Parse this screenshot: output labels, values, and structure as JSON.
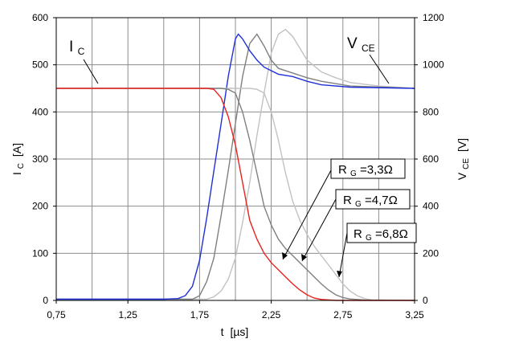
{
  "chart_data": {
    "type": "line",
    "xlabel_main": "t",
    "xlabel_unit": "[µs]",
    "ylabel_left_main": "I",
    "ylabel_left_sub": "C",
    "ylabel_left_unit": "[A]",
    "ylabel_right_main": "V",
    "ylabel_right_sub": "CE",
    "ylabel_right_unit": "[V]",
    "xlim": [
      0.75,
      3.25
    ],
    "ylim_left": [
      0,
      600
    ],
    "ylim_right": [
      0,
      1200
    ],
    "grid": true,
    "x_ticks": [
      "0,75",
      "1,25",
      "1,75",
      "2,25",
      "2,75",
      "3,25"
    ],
    "x_gridlines": [
      0.75,
      1.0,
      1.25,
      1.5,
      1.75,
      2.0,
      2.25,
      2.5,
      2.75,
      3.0,
      3.25
    ],
    "y_left_ticks": [
      "0",
      "100",
      "200",
      "300",
      "400",
      "500",
      "600"
    ],
    "y_right_ticks": [
      "0",
      "200",
      "400",
      "600",
      "800",
      "1000",
      "1200"
    ],
    "annotations": {
      "ic": {
        "main": "I",
        "sub": "C"
      },
      "vce": {
        "main": "V",
        "sub": "CE"
      }
    },
    "series": [
      {
        "name": "RG=3,3Ω",
        "label_main": "R",
        "label_sub": "G",
        "label_rest": "=3,3Ω",
        "color": "#e8231e",
        "vce_color": "#1f2fd8",
        "ic": [
          [
            0.75,
            450
          ],
          [
            1.0,
            450
          ],
          [
            1.25,
            450
          ],
          [
            1.5,
            450
          ],
          [
            1.75,
            450
          ],
          [
            1.8,
            450
          ],
          [
            1.85,
            448
          ],
          [
            1.9,
            430
          ],
          [
            1.95,
            390
          ],
          [
            2.0,
            330
          ],
          [
            2.05,
            250
          ],
          [
            2.1,
            170
          ],
          [
            2.15,
            130
          ],
          [
            2.2,
            100
          ],
          [
            2.25,
            80
          ],
          [
            2.3,
            65
          ],
          [
            2.35,
            50
          ],
          [
            2.4,
            35
          ],
          [
            2.45,
            22
          ],
          [
            2.5,
            12
          ],
          [
            2.55,
            5
          ],
          [
            2.6,
            2
          ],
          [
            2.7,
            0
          ],
          [
            3.25,
            0
          ]
        ],
        "vce": [
          [
            0.75,
            5
          ],
          [
            1.0,
            5
          ],
          [
            1.25,
            5
          ],
          [
            1.5,
            5
          ],
          [
            1.6,
            8
          ],
          [
            1.65,
            20
          ],
          [
            1.7,
            60
          ],
          [
            1.75,
            170
          ],
          [
            1.8,
            350
          ],
          [
            1.85,
            550
          ],
          [
            1.9,
            750
          ],
          [
            1.95,
            950
          ],
          [
            2.0,
            1110
          ],
          [
            2.02,
            1130
          ],
          [
            2.05,
            1110
          ],
          [
            2.1,
            1060
          ],
          [
            2.15,
            1020
          ],
          [
            2.2,
            990
          ],
          [
            2.3,
            960
          ],
          [
            2.4,
            950
          ],
          [
            2.5,
            930
          ],
          [
            2.6,
            915
          ],
          [
            2.8,
            905
          ],
          [
            3.25,
            900
          ]
        ]
      },
      {
        "name": "RG=4,7Ω",
        "label_main": "R",
        "label_sub": "G",
        "label_rest": "=4,7Ω",
        "color": "#7f7f7f",
        "vce_color": "#7f7f7f",
        "ic": [
          [
            0.75,
            450
          ],
          [
            1.0,
            450
          ],
          [
            1.25,
            450
          ],
          [
            1.5,
            450
          ],
          [
            1.75,
            450
          ],
          [
            1.9,
            450
          ],
          [
            1.95,
            448
          ],
          [
            2.0,
            440
          ],
          [
            2.05,
            400
          ],
          [
            2.1,
            340
          ],
          [
            2.15,
            270
          ],
          [
            2.2,
            200
          ],
          [
            2.25,
            160
          ],
          [
            2.3,
            130
          ],
          [
            2.35,
            110
          ],
          [
            2.4,
            95
          ],
          [
            2.45,
            80
          ],
          [
            2.5,
            65
          ],
          [
            2.55,
            50
          ],
          [
            2.6,
            35
          ],
          [
            2.65,
            22
          ],
          [
            2.7,
            12
          ],
          [
            2.75,
            6
          ],
          [
            2.8,
            3
          ],
          [
            2.9,
            1
          ],
          [
            3.25,
            0
          ]
        ],
        "vce": [
          [
            0.75,
            5
          ],
          [
            1.0,
            5
          ],
          [
            1.25,
            5
          ],
          [
            1.5,
            5
          ],
          [
            1.7,
            5
          ],
          [
            1.75,
            20
          ],
          [
            1.8,
            80
          ],
          [
            1.85,
            180
          ],
          [
            1.9,
            360
          ],
          [
            1.95,
            550
          ],
          [
            2.0,
            750
          ],
          [
            2.05,
            950
          ],
          [
            2.1,
            1090
          ],
          [
            2.15,
            1130
          ],
          [
            2.2,
            1080
          ],
          [
            2.25,
            1020
          ],
          [
            2.3,
            985
          ],
          [
            2.4,
            965
          ],
          [
            2.5,
            945
          ],
          [
            2.6,
            930
          ],
          [
            2.8,
            910
          ],
          [
            3.25,
            900
          ]
        ]
      },
      {
        "name": "RG=6,8Ω",
        "label_main": "R",
        "label_sub": "G",
        "label_rest": "=6,8Ω",
        "color": "#c2c2c2",
        "vce_color": "#c2c2c2",
        "ic": [
          [
            0.75,
            450
          ],
          [
            1.0,
            450
          ],
          [
            1.25,
            450
          ],
          [
            1.5,
            450
          ],
          [
            1.75,
            450
          ],
          [
            2.0,
            450
          ],
          [
            2.1,
            450
          ],
          [
            2.15,
            448
          ],
          [
            2.2,
            440
          ],
          [
            2.25,
            400
          ],
          [
            2.3,
            340
          ],
          [
            2.35,
            270
          ],
          [
            2.4,
            210
          ],
          [
            2.45,
            170
          ],
          [
            2.5,
            140
          ],
          [
            2.55,
            115
          ],
          [
            2.6,
            95
          ],
          [
            2.65,
            75
          ],
          [
            2.7,
            55
          ],
          [
            2.75,
            35
          ],
          [
            2.8,
            20
          ],
          [
            2.85,
            10
          ],
          [
            2.9,
            4
          ],
          [
            2.95,
            1
          ],
          [
            3.25,
            0
          ]
        ],
        "vce": [
          [
            0.75,
            5
          ],
          [
            1.0,
            5
          ],
          [
            1.25,
            5
          ],
          [
            1.5,
            5
          ],
          [
            1.8,
            5
          ],
          [
            1.85,
            15
          ],
          [
            1.9,
            40
          ],
          [
            1.95,
            90
          ],
          [
            2.0,
            180
          ],
          [
            2.05,
            330
          ],
          [
            2.1,
            500
          ],
          [
            2.15,
            700
          ],
          [
            2.2,
            880
          ],
          [
            2.25,
            1050
          ],
          [
            2.3,
            1130
          ],
          [
            2.35,
            1150
          ],
          [
            2.4,
            1120
          ],
          [
            2.45,
            1070
          ],
          [
            2.5,
            1020
          ],
          [
            2.6,
            970
          ],
          [
            2.7,
            945
          ],
          [
            2.8,
            925
          ],
          [
            3.0,
            910
          ],
          [
            3.25,
            900
          ]
        ]
      }
    ]
  }
}
